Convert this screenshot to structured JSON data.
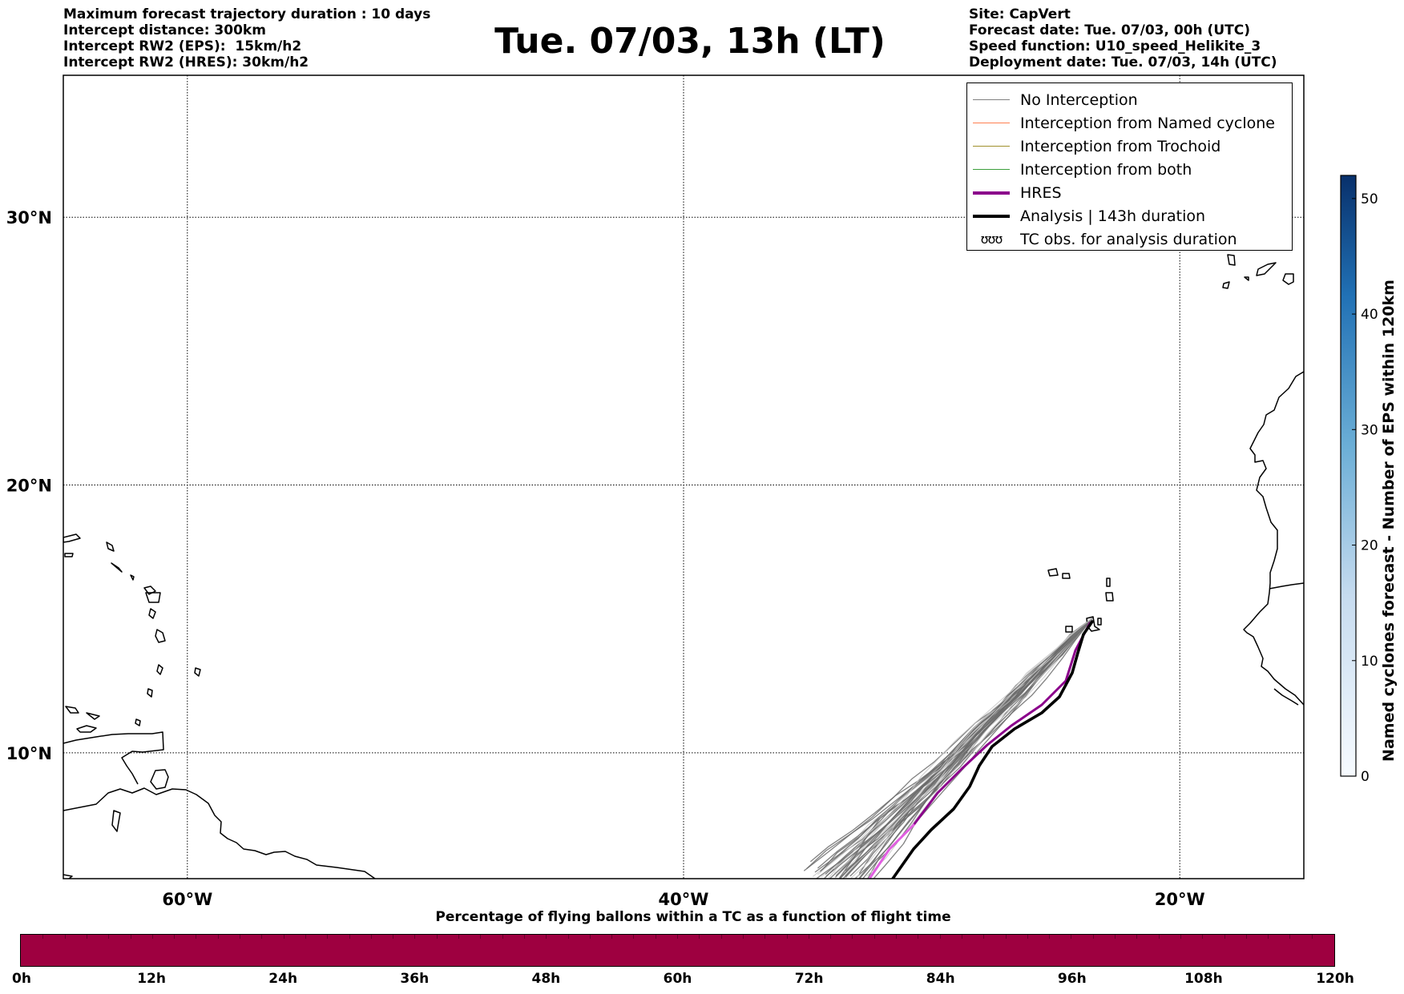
{
  "header_left": [
    "Maximum forecast trajectory duration : 10 days",
    "Intercept distance: 300km",
    "Intercept RW2 (EPS):  15km/h2",
    "Intercept RW2 (HRES): 30km/h2"
  ],
  "title": "Tue. 07/03, 13h (LT)",
  "header_right": [
    "Site: CapVert",
    "Forecast date: Tue. 07/03, 00h (UTC)",
    "Speed function: U10_speed_Helikite_3",
    "Deployment date: Tue. 07/03, 14h (UTC)"
  ],
  "map": {
    "lon_range": [
      -65,
      -15
    ],
    "lat_range": [
      5.3,
      35.3
    ],
    "lon_ticks": [
      {
        "value": -60,
        "label": "60°W"
      },
      {
        "value": -40,
        "label": "40°W"
      },
      {
        "value": -20,
        "label": "20°W"
      }
    ],
    "lat_ticks": [
      {
        "value": 10,
        "label": "10°N"
      },
      {
        "value": 20,
        "label": "20°N"
      },
      {
        "value": 30,
        "label": "30°N"
      }
    ],
    "grid": true
  },
  "legend": {
    "items": [
      {
        "label": "No Interception",
        "color": "#808080",
        "style": "line"
      },
      {
        "label": "Interception from Named cyclone",
        "color": "#ff7f50",
        "style": "line"
      },
      {
        "label": "Interception from Trochoid",
        "color": "#a0902c",
        "style": "line"
      },
      {
        "label": "Interception from both",
        "color": "#3c9e3c",
        "style": "line"
      },
      {
        "label": "HRES",
        "color": "#8b008b",
        "style": "thick"
      },
      {
        "label": "Analysis | 143h duration",
        "color": "#000000",
        "style": "thick"
      },
      {
        "label": "TC obs. for analysis duration",
        "icon": "tc-symbol-icon",
        "glyph": "ʊʊʊ",
        "style": "icon"
      }
    ]
  },
  "colorbar_right": {
    "label": "Named cyclones forecast - Number of EPS within 120km",
    "ticks": [
      "0",
      "10",
      "20",
      "30",
      "40",
      "50"
    ],
    "range": [
      0,
      52
    ],
    "colors": [
      "#f7fbff",
      "#08306b"
    ]
  },
  "colorbar_bottom": {
    "title": "Percentage of flying ballons within a TC as a function of flight time",
    "ticks": [
      "0h",
      "12h",
      "24h",
      "36h",
      "48h",
      "60h",
      "72h",
      "84h",
      "96h",
      "108h",
      "120h"
    ],
    "color": "#9e0040"
  },
  "colors": {
    "eps_tracks": "#6b6b6b",
    "eps_tracks_faded": "#c8c8c8",
    "hres": "#8b008b",
    "hres_faded": "#e25fe2",
    "analysis": "#000000",
    "coast": "#000000"
  }
}
